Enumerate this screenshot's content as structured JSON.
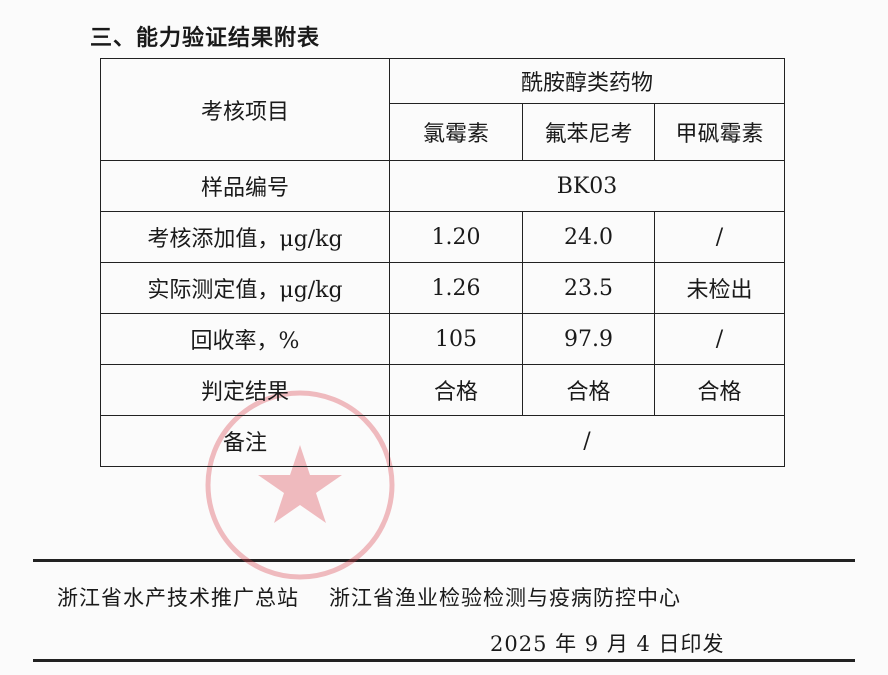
{
  "section_title": "三、能力验证结果附表",
  "table": {
    "item_header": "考核项目",
    "group_header": "酰胺醇类药物",
    "columns": [
      "氯霉素",
      "氟苯尼考",
      "甲砜霉素"
    ],
    "sample_row": {
      "label": "样品编号",
      "value": "BK03"
    },
    "rows": [
      {
        "label": "考核添加值，μg/kg",
        "values": [
          "1.20",
          "24.0",
          "/"
        ]
      },
      {
        "label": "实际测定值，μg/kg",
        "values": [
          "1.26",
          "23.5",
          "未检出"
        ]
      },
      {
        "label": "回收率，%",
        "values": [
          "105",
          "97.9",
          "/"
        ]
      },
      {
        "label": "判定结果",
        "values": [
          "合格",
          "合格",
          "合格"
        ]
      }
    ],
    "remark_row": {
      "label": "备注",
      "value": "/"
    }
  },
  "footer": {
    "issuer_1": "浙江省水产技术推广总站",
    "issuer_2": "浙江省渔业检验检测与疫病防控中心",
    "date": "2025 年 9 月 4 日印发"
  },
  "colors": {
    "stamp": "#d9434f",
    "ink": "#1a1a1a"
  }
}
